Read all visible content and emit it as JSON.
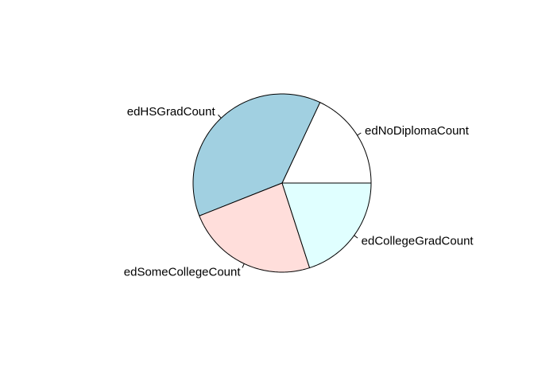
{
  "chart_data": {
    "type": "pie",
    "title": "",
    "slices": [
      {
        "label": "edNoDiplomaCount",
        "value": 18,
        "color": "#ffffff"
      },
      {
        "label": "edHSGradCount",
        "value": 38,
        "color": "#a1d0e1"
      },
      {
        "label": "edSomeCollegeCount",
        "value": 24,
        "color": "#ffdedb"
      },
      {
        "label": "edCollegeGradCount",
        "value": 20,
        "color": "#e0ffff"
      }
    ],
    "start_angle_deg": 0,
    "direction": "counterclockwise"
  }
}
